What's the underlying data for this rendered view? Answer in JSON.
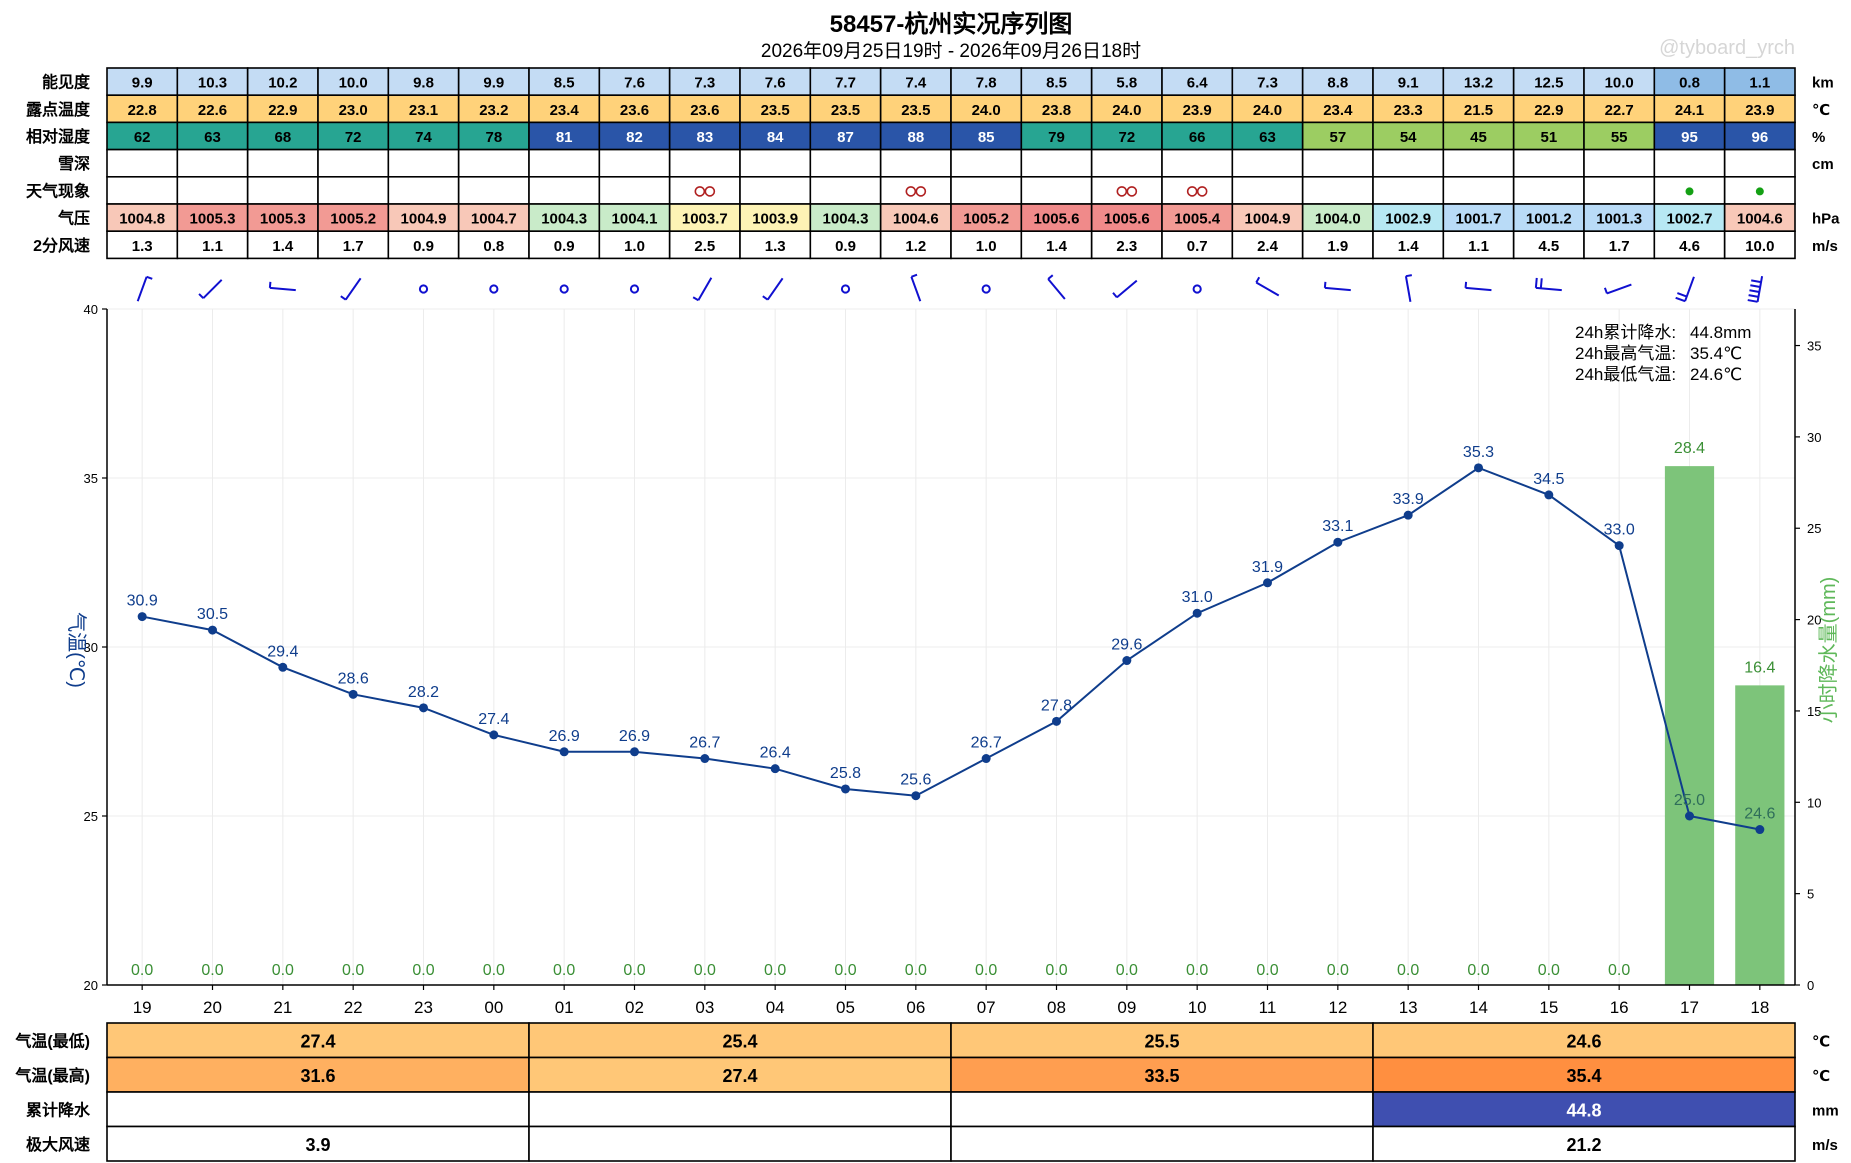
{
  "title": "58457-杭州实况序列图",
  "subtitle": "2026年09月25日19时 - 2026年09月26日18时",
  "watermark": "@tyboard_yrch",
  "hours": [
    "19",
    "20",
    "21",
    "22",
    "23",
    "00",
    "01",
    "02",
    "03",
    "04",
    "05",
    "06",
    "07",
    "08",
    "09",
    "10",
    "11",
    "12",
    "13",
    "14",
    "15",
    "16",
    "17",
    "18"
  ],
  "top_table": {
    "rows": [
      {
        "label": "能见度",
        "unit": "km",
        "values": [
          "9.9",
          "10.3",
          "10.2",
          "10.0",
          "9.8",
          "9.9",
          "8.5",
          "7.6",
          "7.3",
          "7.6",
          "7.7",
          "7.4",
          "7.8",
          "8.5",
          "5.8",
          "6.4",
          "7.3",
          "8.8",
          "9.1",
          "13.2",
          "12.5",
          "10.0",
          "0.8",
          "1.1"
        ]
      },
      {
        "label": "露点温度",
        "unit": "℃",
        "values": [
          "22.8",
          "22.6",
          "22.9",
          "23.0",
          "23.1",
          "23.2",
          "23.4",
          "23.6",
          "23.6",
          "23.5",
          "23.5",
          "23.5",
          "24.0",
          "23.8",
          "24.0",
          "23.9",
          "24.0",
          "23.4",
          "23.3",
          "21.5",
          "22.9",
          "22.7",
          "24.1",
          "23.9"
        ]
      },
      {
        "label": "相对湿度",
        "unit": "%",
        "values": [
          "62",
          "63",
          "68",
          "72",
          "74",
          "78",
          "81",
          "82",
          "83",
          "84",
          "87",
          "88",
          "85",
          "79",
          "72",
          "66",
          "63",
          "57",
          "54",
          "45",
          "51",
          "55",
          "95",
          "96"
        ]
      },
      {
        "label": "雪深",
        "unit": "cm",
        "values": [
          "",
          "",
          "",
          "",
          "",
          "",
          "",
          "",
          "",
          "",
          "",
          "",
          "",
          "",
          "",
          "",
          "",
          "",
          "",
          "",
          "",
          "",
          "",
          ""
        ]
      },
      {
        "label": "天气现象",
        "unit": "",
        "values": [
          "",
          "",
          "",
          "",
          "",
          "",
          "",
          "",
          "haze",
          "",
          "",
          "haze",
          "",
          "",
          "haze",
          "haze",
          "",
          "",
          "",
          "",
          "",
          "",
          "rain",
          "rain"
        ]
      },
      {
        "label": "气压",
        "unit": "hPa",
        "values": [
          "1004.8",
          "1005.3",
          "1005.3",
          "1005.2",
          "1004.9",
          "1004.7",
          "1004.3",
          "1004.1",
          "1003.7",
          "1003.9",
          "1004.3",
          "1004.6",
          "1005.2",
          "1005.6",
          "1005.6",
          "1005.4",
          "1004.9",
          "1004.0",
          "1002.9",
          "1001.7",
          "1001.2",
          "1001.3",
          "1002.7",
          "1004.6"
        ]
      },
      {
        "label": "2分风速",
        "unit": "m/s",
        "values": [
          "1.3",
          "1.1",
          "1.4",
          "1.7",
          "0.9",
          "0.8",
          "0.9",
          "1.0",
          "2.5",
          "1.3",
          "0.9",
          "1.2",
          "1.0",
          "1.4",
          "2.3",
          "0.7",
          "2.4",
          "1.9",
          "1.4",
          "1.1",
          "4.5",
          "1.7",
          "4.6",
          "10.0"
        ]
      }
    ]
  },
  "chart_data": {
    "type": "line",
    "x": [
      "19",
      "20",
      "21",
      "22",
      "23",
      "00",
      "01",
      "02",
      "03",
      "04",
      "05",
      "06",
      "07",
      "08",
      "09",
      "10",
      "11",
      "12",
      "13",
      "14",
      "15",
      "16",
      "17",
      "18"
    ],
    "series": [
      {
        "name": "气温",
        "type": "line",
        "axis": "left",
        "values": [
          30.9,
          30.5,
          29.4,
          28.6,
          28.2,
          27.4,
          26.9,
          26.9,
          26.7,
          26.4,
          25.8,
          25.6,
          26.7,
          27.8,
          29.6,
          31.0,
          31.9,
          33.1,
          33.9,
          35.3,
          34.5,
          33.0,
          25.0,
          24.6
        ]
      },
      {
        "name": "小时降水量",
        "type": "bar",
        "axis": "right",
        "values": [
          0.0,
          0.0,
          0.0,
          0.0,
          0.0,
          0.0,
          0.0,
          0.0,
          0.0,
          0.0,
          0.0,
          0.0,
          0.0,
          0.0,
          0.0,
          0.0,
          0.0,
          0.0,
          0.0,
          0.0,
          0.0,
          0.0,
          28.4,
          16.4
        ]
      }
    ],
    "ylabel": "气温(℃)",
    "y2label": "小时降水量(mm)",
    "ylim": [
      20,
      40
    ],
    "y2lim": [
      0,
      37
    ],
    "yticks": [
      "20",
      "25",
      "30",
      "35",
      "40"
    ],
    "y2ticks": [
      "0",
      "5",
      "10",
      "15",
      "20",
      "25",
      "30",
      "35"
    ],
    "grid": true,
    "wind_barbs": [
      {
        "dir": 20,
        "speed": 1.3
      },
      {
        "dir": 225,
        "speed": 1.1
      },
      {
        "dir": 275,
        "speed": 1.4
      },
      {
        "dir": 215,
        "speed": 1.7
      },
      {
        "dir": null,
        "speed": 0.9
      },
      {
        "dir": null,
        "speed": 0.8
      },
      {
        "dir": null,
        "speed": 0.9
      },
      {
        "dir": null,
        "speed": 1.0
      },
      {
        "dir": 210,
        "speed": 2.5
      },
      {
        "dir": 215,
        "speed": 1.3
      },
      {
        "dir": null,
        "speed": 0.9
      },
      {
        "dir": 340,
        "speed": 1.2
      },
      {
        "dir": null,
        "speed": 1.0
      },
      {
        "dir": 320,
        "speed": 1.4
      },
      {
        "dir": 230,
        "speed": 2.3
      },
      {
        "dir": null,
        "speed": 0.7
      },
      {
        "dir": 300,
        "speed": 2.4
      },
      {
        "dir": 275,
        "speed": 1.9
      },
      {
        "dir": 350,
        "speed": 1.4
      },
      {
        "dir": 275,
        "speed": 1.1
      },
      {
        "dir": 275,
        "speed": 4.5
      },
      {
        "dir": 250,
        "speed": 1.7
      },
      {
        "dir": 200,
        "speed": 4.6
      },
      {
        "dir": 190,
        "speed": 10.0
      }
    ],
    "stats": [
      {
        "label": "24h累计降水:",
        "value": "44.8mm"
      },
      {
        "label": "24h最高气温:",
        "value": "35.4℃"
      },
      {
        "label": "24h最低气温:",
        "value": "24.6℃"
      }
    ]
  },
  "bottom_table": {
    "rows": [
      {
        "label": "气温(最低)",
        "unit": "℃",
        "values": [
          "27.4",
          "25.4",
          "25.5",
          "24.6"
        ],
        "colors": [
          "#ffc777",
          "#ffc777",
          "#ffc777",
          "#ffc777"
        ]
      },
      {
        "label": "气温(最高)",
        "unit": "℃",
        "values": [
          "31.6",
          "27.4",
          "33.5",
          "35.4"
        ],
        "colors": [
          "#ffb060",
          "#ffc777",
          "#ff9e50",
          "#ff8f40"
        ]
      },
      {
        "label": "累计降水",
        "unit": "mm",
        "values": [
          "",
          "",
          "",
          "44.8"
        ],
        "colors": [
          "#ffffff",
          "#ffffff",
          "#ffffff",
          "#3f4fb0"
        ]
      },
      {
        "label": "极大风速",
        "unit": "m/s",
        "values": [
          "3.9",
          "",
          "",
          "21.2"
        ],
        "colors": [
          "#ffffff",
          "#ffffff",
          "#ffffff",
          "#ffffff"
        ]
      }
    ]
  },
  "colors": {
    "temp_line": "#0f3d8c",
    "precip_bar": "#7dc47a",
    "precip_text": "#3a8f35",
    "grid": "#ececec"
  }
}
